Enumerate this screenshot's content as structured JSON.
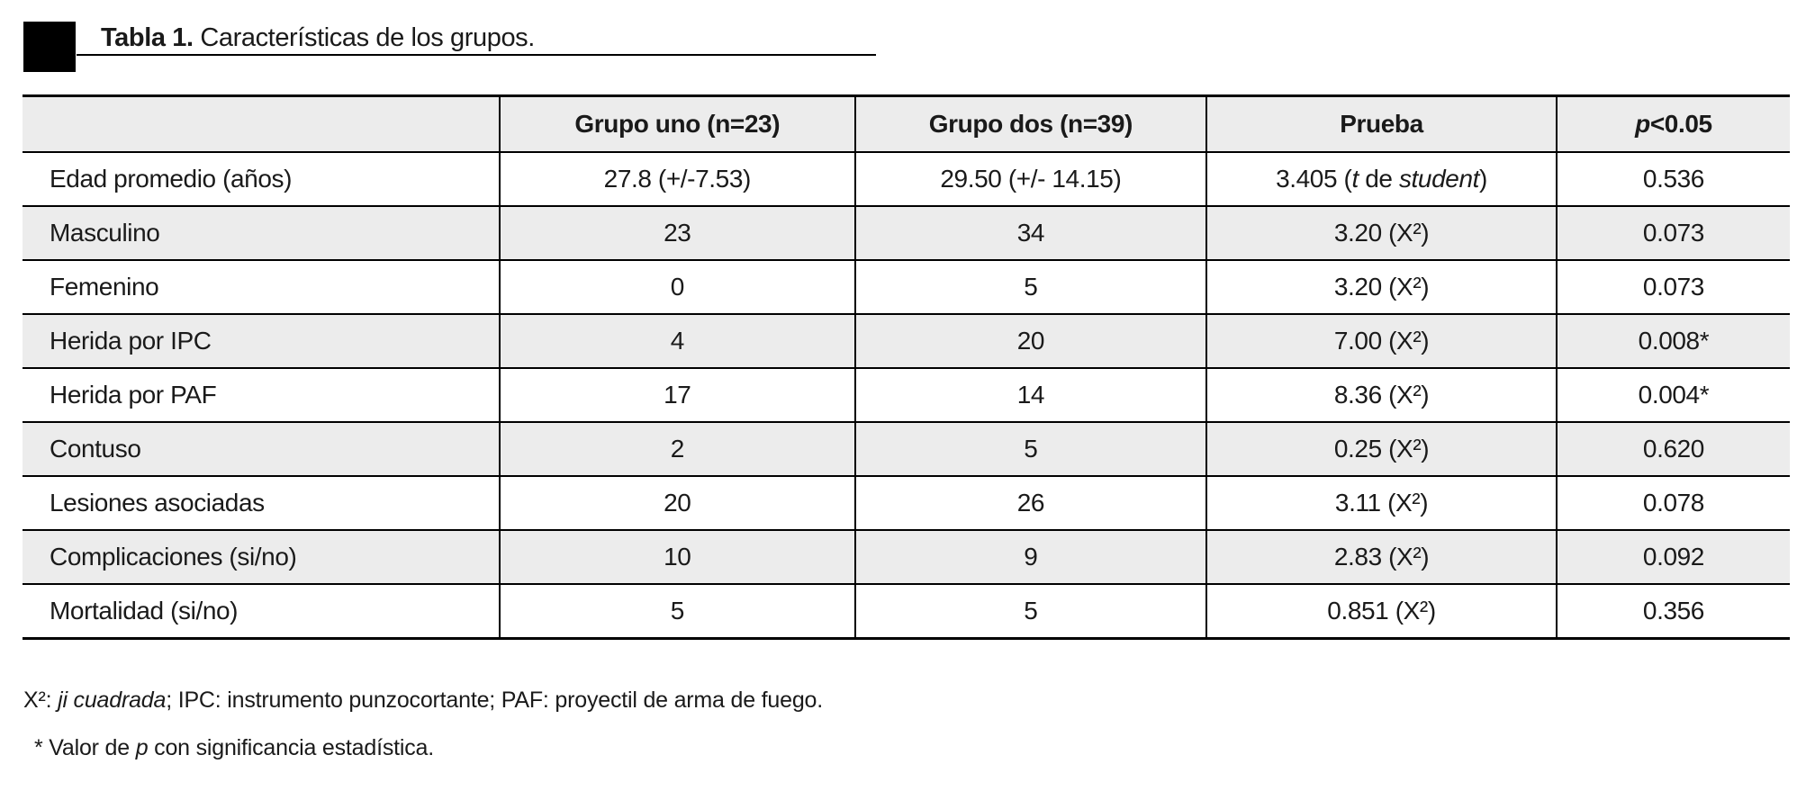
{
  "title": {
    "label": "Tabla 1.",
    "text": "Características de los grupos."
  },
  "table": {
    "columns": [
      "",
      "Grupo uno (n=23)",
      "Grupo dos (n=39)",
      "Prueba",
      "_p_<0.05"
    ],
    "rows": [
      [
        "Edad promedio (años)",
        "27.8 (+/-7.53)",
        "29.50 (+/- 14.15)",
        "3.405 (_t_ de _student_)",
        "0.536"
      ],
      [
        "Masculino",
        "23",
        "34",
        "3.20 (X²)",
        "0.073"
      ],
      [
        "Femenino",
        "0",
        "5",
        "3.20 (X²)",
        "0.073"
      ],
      [
        "Herida por IPC",
        "4",
        "20",
        "7.00 (X²)",
        "0.008*"
      ],
      [
        "Herida por PAF",
        "17",
        "14",
        "8.36 (X²)",
        "0.004*"
      ],
      [
        "Contuso",
        "2",
        "5",
        "0.25 (X²)",
        "0.620"
      ],
      [
        "Lesiones asociadas",
        "20",
        "26",
        "3.11 (X²)",
        "0.078"
      ],
      [
        "Complicaciones (si/no)",
        "10",
        "9",
        "2.83 (X²)",
        "0.092"
      ],
      [
        "Mortalidad (si/no)",
        "5",
        "5",
        "0.851 (X²)",
        "0.356"
      ]
    ]
  },
  "footnotes": [
    "X²: _ji cuadrada_; IPC: instrumento punzocortante; PAF: proyectil de arma de fuego.",
    "* Valor de _p_ con significancia estadística."
  ],
  "colors": {
    "row_alt_background": "#ececec",
    "border": "#000000",
    "text": "#1a1a1a",
    "title_marker": "#000000"
  }
}
